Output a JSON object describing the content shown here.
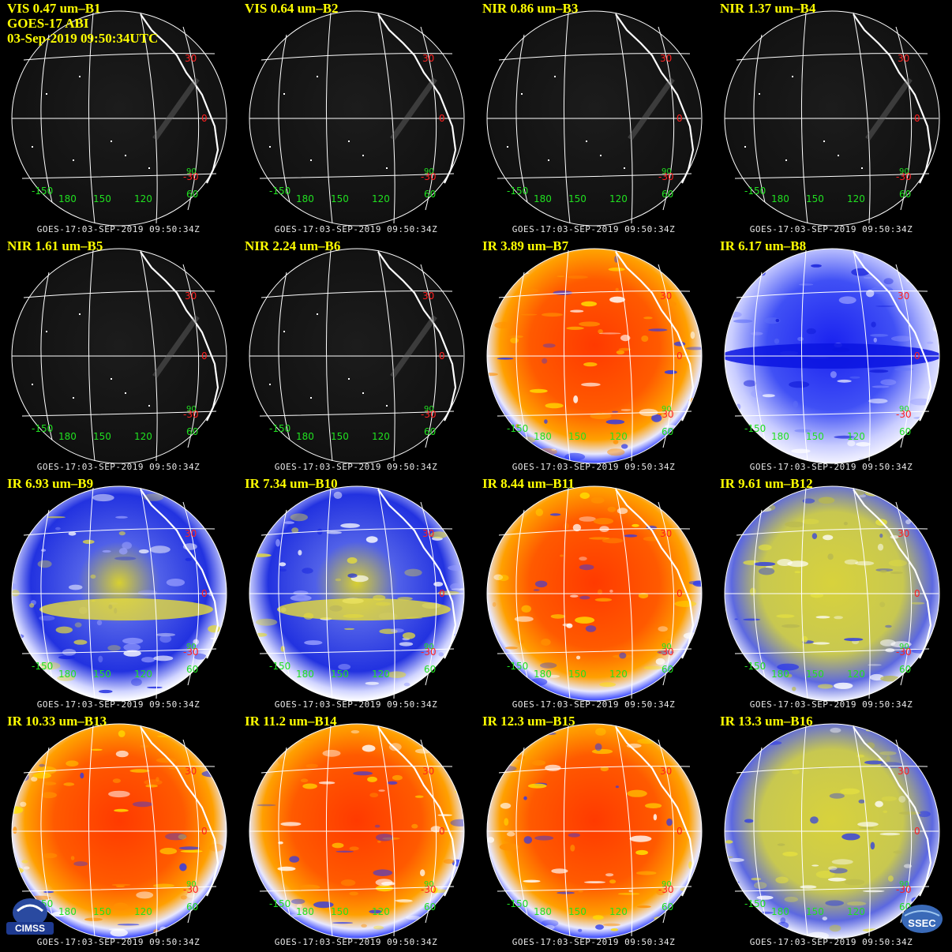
{
  "header": {
    "satellite_line": "GOES-17 ABI",
    "timestamp_line": "03-Sep-2019 09:50:34UTC"
  },
  "footer_text": "GOES-17:03-SEP-2019 09:50:34Z",
  "grid_labels": {
    "lat_30": "30",
    "lat_0": "0",
    "lat_m30": "-30",
    "lat_60": "60",
    "lon_m150": "-150",
    "lon_180": "180",
    "lon_150": "150",
    "lon_120": "120",
    "lon_90": "90"
  },
  "logos": {
    "left": "CIMSS",
    "right": "SSEC"
  },
  "colors": {
    "title": "#ffff00",
    "lat_label": "#ff2020",
    "lon_label": "#20e020",
    "grid": "#ffffff"
  },
  "panels": [
    {
      "title": "VIS 0.47 um–B1",
      "style": "vis"
    },
    {
      "title": "VIS 0.64 um–B2",
      "style": "vis"
    },
    {
      "title": "NIR 0.86 um–B3",
      "style": "vis"
    },
    {
      "title": "NIR 1.37 um–B4",
      "style": "vis"
    },
    {
      "title": "NIR 1.61 um–B5",
      "style": "vis"
    },
    {
      "title": "NIR 2.24 um–B6",
      "style": "vis"
    },
    {
      "title": "IR 3.89 um–B7",
      "style": "ir_warm"
    },
    {
      "title": "IR 6.17 um–B8",
      "style": "wv_blue"
    },
    {
      "title": "IR 6.93 um–B9",
      "style": "wv_mixed"
    },
    {
      "title": "IR 7.34 um–B10",
      "style": "wv_mixed"
    },
    {
      "title": "IR 8.44 um–B11",
      "style": "ir_warm"
    },
    {
      "title": "IR 9.61 um–B12",
      "style": "ozone"
    },
    {
      "title": "IR 10.33 um–B13",
      "style": "ir_warm"
    },
    {
      "title": "IR 11.2 um–B14",
      "style": "ir_warm"
    },
    {
      "title": "IR 12.3 um–B15",
      "style": "ir_warm"
    },
    {
      "title": "IR 13.3 um–B16",
      "style": "ozone"
    }
  ]
}
